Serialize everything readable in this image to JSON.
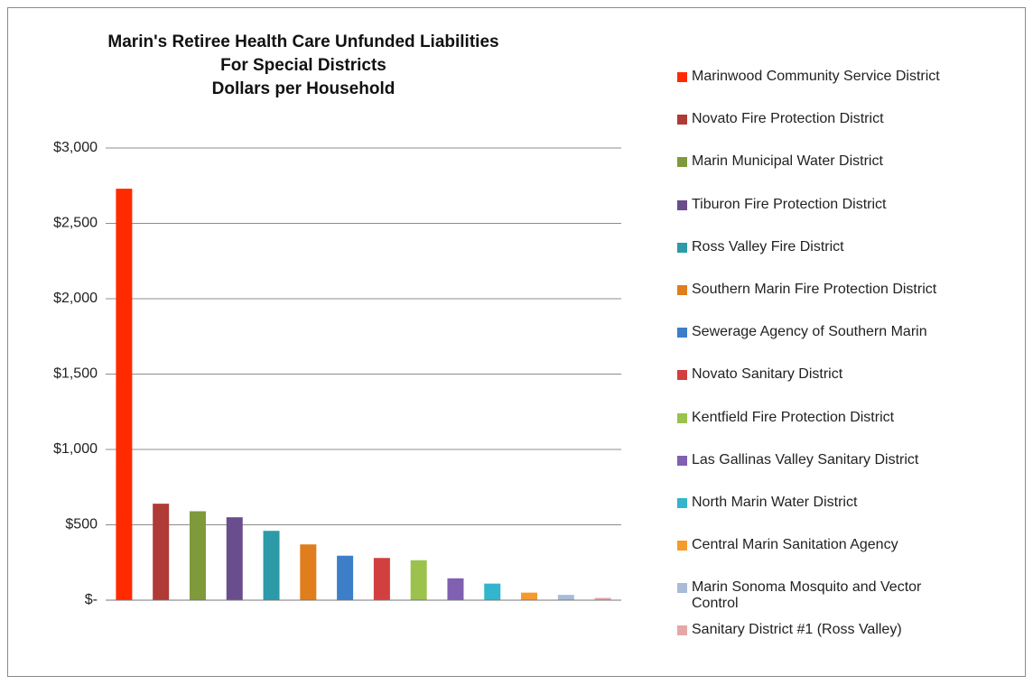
{
  "chart_data": {
    "type": "bar",
    "title": [
      "Marin's Retiree Health Care Unfunded Liabilities",
      "For Special Districts",
      "Dollars per Household"
    ],
    "categories": [
      null
    ],
    "series": [
      {
        "name": "Marinwood Community Service District",
        "color": "#ff2a00",
        "values": [
          2730
        ]
      },
      {
        "name": "Novato Fire Protection District",
        "color": "#b03a36",
        "values": [
          640
        ]
      },
      {
        "name": "Marin Municipal Water District",
        "color": "#7f9a3a",
        "values": [
          590
        ]
      },
      {
        "name": "Tiburon Fire Protection District",
        "color": "#6a4d8c",
        "values": [
          550
        ]
      },
      {
        "name": "Ross Valley Fire District",
        "color": "#2d9aa8",
        "values": [
          460
        ]
      },
      {
        "name": "Southern Marin Fire Protection District",
        "color": "#e07d1d",
        "values": [
          370
        ]
      },
      {
        "name": "Sewerage Agency of Southern Marin",
        "color": "#3c7ec8",
        "values": [
          295
        ]
      },
      {
        "name": "Novato Sanitary District",
        "color": "#d1403e",
        "values": [
          280
        ]
      },
      {
        "name": "Kentfield Fire Protection District",
        "color": "#9bc24c",
        "values": [
          265
        ]
      },
      {
        "name": "Las Gallinas Valley Sanitary District",
        "color": "#8060b0",
        "values": [
          145
        ]
      },
      {
        "name": "North Marin Water District",
        "color": "#33b5cc",
        "values": [
          110
        ]
      },
      {
        "name": "Central Marin Sanitation Agency",
        "color": "#f59b2c",
        "values": [
          50
        ]
      },
      {
        "name": "Marin Sonoma Mosquito and Vector Control",
        "color": "#a8bcd8",
        "values": [
          35
        ]
      },
      {
        "name": "Sanitary District #1 (Ross Valley)",
        "color": "#e5a8a6",
        "values": [
          15
        ]
      }
    ],
    "ylim": [
      0,
      3000
    ],
    "yticks": [
      {
        "value": 0,
        "label": "$-"
      },
      {
        "value": 500,
        "label": "$500"
      },
      {
        "value": 1000,
        "label": "$1,000"
      },
      {
        "value": 1500,
        "label": "$1,500"
      },
      {
        "value": 2000,
        "label": "$2,000"
      },
      {
        "value": 2500,
        "label": "$2,500"
      },
      {
        "value": 3000,
        "label": "$3,000"
      }
    ],
    "grid": true,
    "legend": "right"
  }
}
